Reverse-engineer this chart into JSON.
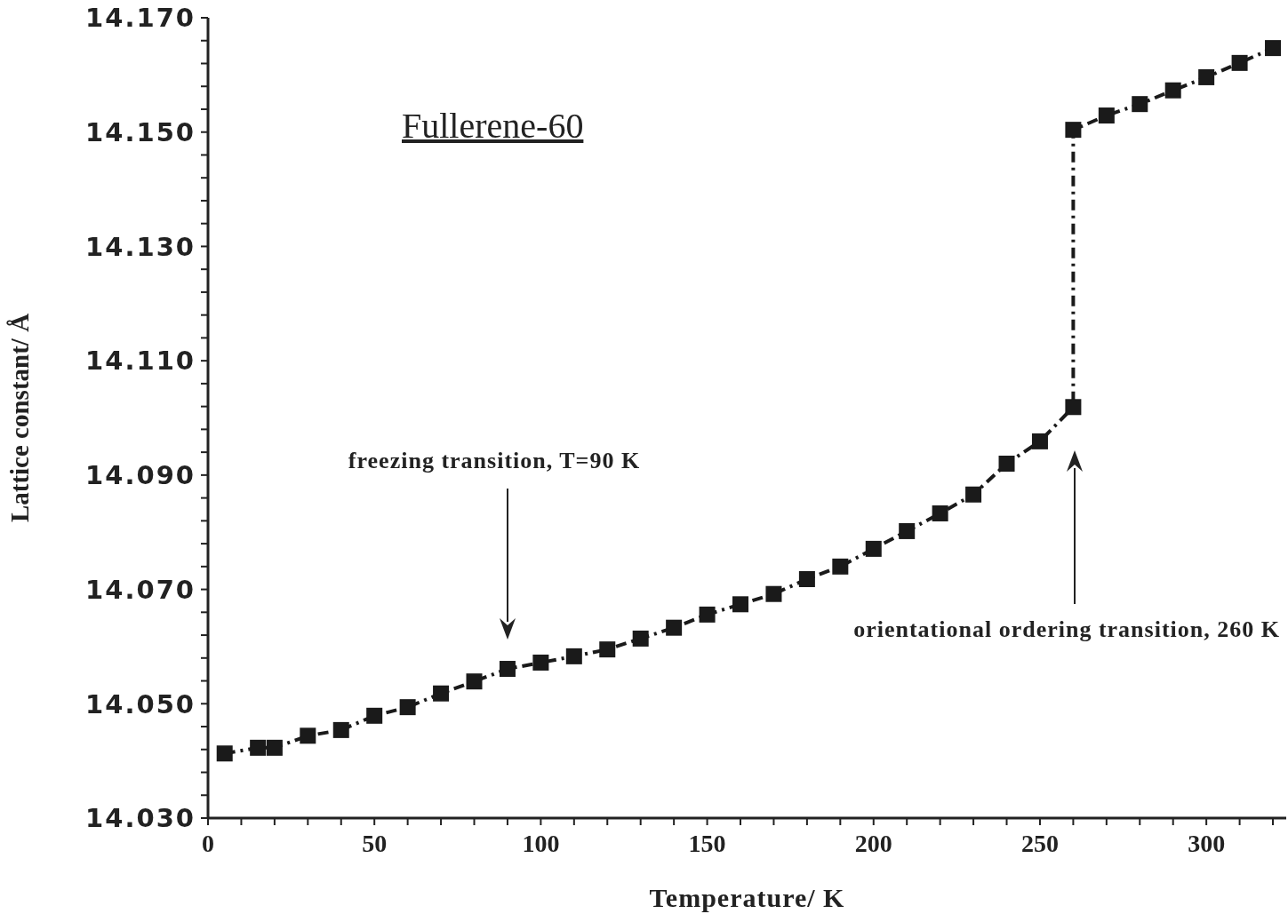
{
  "chart_data": {
    "type": "line",
    "xlabel": "Temperature/  K",
    "ylabel": "Lattice constant/ Å",
    "x": [
      5,
      15,
      20,
      30,
      40,
      50,
      60,
      70,
      80,
      90,
      100,
      110,
      120,
      130,
      140,
      150,
      160,
      170,
      180,
      190,
      200,
      210,
      220,
      230,
      240,
      250,
      260,
      260,
      270,
      280,
      290,
      300,
      310,
      320
    ],
    "series": [
      {
        "color": "#1a1a1a",
        "values": [
          14.0413,
          14.0423,
          14.0423,
          14.0444,
          14.0454,
          14.0479,
          14.0494,
          14.0518,
          14.0539,
          14.0561,
          14.0572,
          14.0583,
          14.0595,
          14.0614,
          14.0633,
          14.0656,
          14.0674,
          14.0692,
          14.0718,
          14.074,
          14.0771,
          14.0802,
          14.0833,
          14.0866,
          14.092,
          14.0959,
          14.1019,
          14.1504,
          14.1529,
          14.1549,
          14.1573,
          14.1596,
          14.1621,
          14.1647
        ]
      }
    ],
    "xlim": [
      0,
      324
    ],
    "ylim": [
      14.03,
      14.17
    ],
    "xticks": [
      0,
      {
        "value": 10,
        "label": null
      },
      {
        "value": 20,
        "label": null
      },
      {
        "value": 30,
        "label": null
      },
      {
        "value": 40,
        "label": null
      },
      50,
      {
        "value": 60,
        "label": null
      },
      {
        "value": 70,
        "label": null
      },
      {
        "value": 80,
        "label": null
      },
      {
        "value": 90,
        "label": null
      },
      100,
      {
        "value": 110,
        "label": null
      },
      {
        "value": 120,
        "label": null
      },
      {
        "value": 130,
        "label": null
      },
      {
        "value": 140,
        "label": null
      },
      150,
      {
        "value": 160,
        "label": null
      },
      {
        "value": 170,
        "label": null
      },
      {
        "value": 180,
        "label": null
      },
      {
        "value": 190,
        "label": null
      },
      200,
      {
        "value": 210,
        "label": null
      },
      {
        "value": 220,
        "label": null
      },
      {
        "value": 230,
        "label": null
      },
      {
        "value": 240,
        "label": null
      },
      250,
      {
        "value": 260,
        "label": null
      },
      {
        "value": 270,
        "label": null
      },
      {
        "value": 280,
        "label": null
      },
      {
        "value": 290,
        "label": null
      },
      300,
      {
        "value": 310,
        "label": null
      },
      {
        "value": 320,
        "label": null
      }
    ],
    "yticks": [
      {
        "value": 14.03,
        "label": "14.030"
      },
      {
        "value": 14.034,
        "label": null
      },
      {
        "value": 14.038,
        "label": null
      },
      {
        "value": 14.042,
        "label": null
      },
      {
        "value": 14.046,
        "label": null
      },
      {
        "value": 14.05,
        "label": "14.050"
      },
      {
        "value": 14.054,
        "label": null
      },
      {
        "value": 14.058,
        "label": null
      },
      {
        "value": 14.062,
        "label": null
      },
      {
        "value": 14.066,
        "label": null
      },
      {
        "value": 14.07,
        "label": "14.070"
      },
      {
        "value": 14.074,
        "label": null
      },
      {
        "value": 14.078,
        "label": null
      },
      {
        "value": 14.082,
        "label": null
      },
      {
        "value": 14.086,
        "label": null
      },
      {
        "value": 14.09,
        "label": "14.090"
      },
      {
        "value": 14.094,
        "label": null
      },
      {
        "value": 14.098,
        "label": null
      },
      {
        "value": 14.102,
        "label": null
      },
      {
        "value": 14.106,
        "label": null
      },
      {
        "value": 14.11,
        "label": "14.110"
      },
      {
        "value": 14.114,
        "label": null
      },
      {
        "value": 14.118,
        "label": null
      },
      {
        "value": 14.122,
        "label": null
      },
      {
        "value": 14.126,
        "label": null
      },
      {
        "value": 14.13,
        "label": "14.130"
      },
      {
        "value": 14.134,
        "label": null
      },
      {
        "value": 14.138,
        "label": null
      },
      {
        "value": 14.142,
        "label": null
      },
      {
        "value": 14.146,
        "label": null
      },
      {
        "value": 14.15,
        "label": "14.150"
      },
      {
        "value": 14.154,
        "label": null
      },
      {
        "value": 14.158,
        "label": null
      },
      {
        "value": 14.162,
        "label": null
      },
      {
        "value": 14.166,
        "label": null
      },
      {
        "value": 14.17,
        "label": "14.170"
      }
    ],
    "marker": "square",
    "line_style": "dashed",
    "grid": false,
    "legend": false,
    "annotations": [
      "Fullerene-60",
      "freezing transition, T=90 K",
      "orientational ordering transition, 260 K"
    ]
  }
}
